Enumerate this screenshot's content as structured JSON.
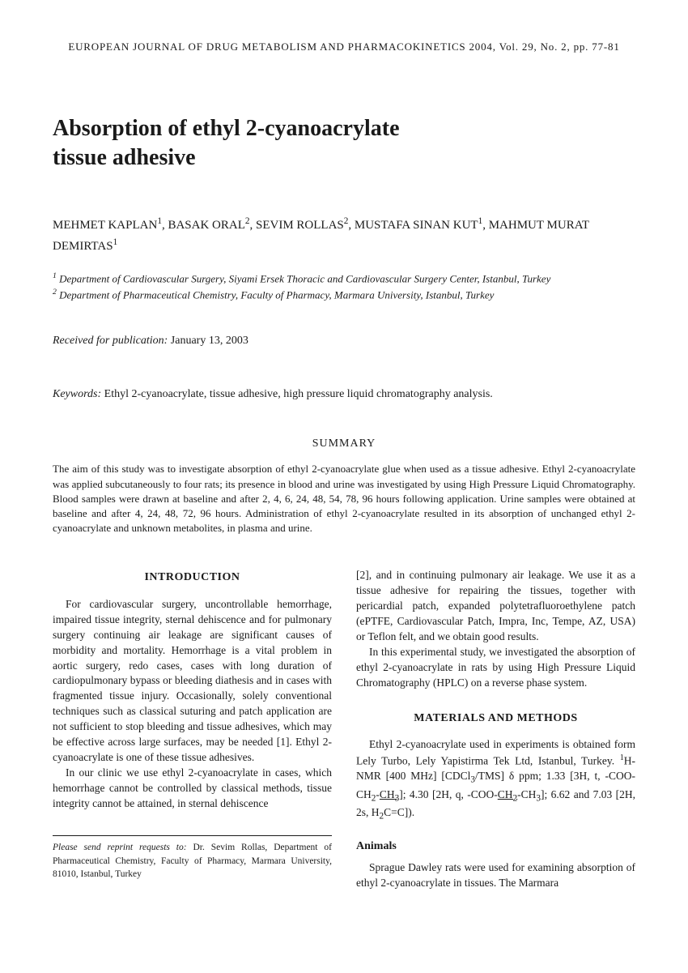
{
  "journal_header": "EUROPEAN JOURNAL OF DRUG METABOLISM AND PHARMACOKINETICS 2004, Vol. 29, No. 2, pp. 77-81",
  "title_line1": "Absorption of ethyl 2-cyanoacrylate",
  "title_line2": "tissue adhesive",
  "authors_html": "MEHMET KAPLAN<sup>1</sup>, BASAK ORAL<sup>2</sup>, SEVIM ROLLAS<sup>2</sup>, MUSTAFA SINAN KUT<sup>1</sup>, MAHMUT MURAT DEMIRTAS<sup>1</sup>",
  "affiliation1_html": "<sup>1</sup> Department of Cardiovascular Surgery, Siyami Ersek Thoracic and Cardiovascular Surgery Center, Istanbul, Turkey",
  "affiliation2_html": "<sup>2</sup> Department of Pharmaceutical Chemistry, Faculty of Pharmacy, Marmara University, Istanbul, Turkey",
  "received_label": "Received for publication:",
  "received_date": " January 13, 2003",
  "keywords_label": "Keywords:",
  "keywords_text": " Ethyl 2-cyanoacrylate, tissue adhesive, high pressure liquid chromatography analysis.",
  "summary_heading": "SUMMARY",
  "summary_text": "The aim of this study was to investigate absorption of ethyl 2-cyanoacrylate glue when used as a tissue adhesive. Ethyl 2-cyanoacrylate was applied subcutaneously to four rats; its presence in blood and urine was investigated by using High Pressure Liquid Chromatography. Blood samples were drawn at baseline and after 2, 4, 6, 24, 48, 54, 78, 96 hours following application. Urine samples were obtained at baseline and after 4, 24, 48, 72, 96 hours. Administration of ethyl 2-cyanoacrylate resulted in its absorption of unchanged ethyl 2-cyanoacrylate and unknown metabolites, in plasma and urine.",
  "introduction_heading": "INTRODUCTION",
  "intro_p1": "For cardiovascular surgery, uncontrollable hemorrhage, impaired tissue integrity, sternal dehiscence and for pulmonary surgery continuing air leakage are significant causes of morbidity and mortality. Hemorrhage is a vital problem in aortic surgery, redo cases, cases with long duration of cardiopulmonary bypass or bleeding diathesis and in cases with fragmented tissue injury. Occasionally, solely conventional techniques such as classical suturing and patch application are not sufficient to stop bleeding and tissue adhesives, which may be effective across large surfaces, may be needed [1]. Ethyl 2-cyanoacrylate is one of these tissue adhesives.",
  "intro_p2": "In our clinic we use ethyl 2-cyanoacrylate in cases, which hemorrhage cannot be controlled by classical methods, tissue integrity cannot be attained, in sternal dehiscence",
  "col2_p1": "[2], and in continuing pulmonary air leakage. We use it as a tissue adhesive for repairing the tissues, together with pericardial patch, expanded polytetrafluoroethylene patch (ePTFE, Cardiovascular Patch, Impra, Inc, Tempe, AZ, USA) or Teflon felt, and we obtain good results.",
  "col2_p2": "In this experimental study, we investigated the absorption of ethyl 2-cyanoacrylate in rats by using High Pressure Liquid Chromatography (HPLC) on a reverse phase system.",
  "materials_heading": "MATERIALS AND METHODS",
  "materials_p1_html": "Ethyl 2-cyanoacrylate used in experiments is obtained form Lely Turbo, Lely Yapistirma Tek Ltd, Istanbul, Turkey. <sup>1</sup>H-NMR [400 MHz] [CDCl<sub>3</sub>/TMS] δ ppm; 1.33 [3H, t, -COO-CH<sub>2</sub>-<u>CH<sub>3</sub></u>]; 4.30 [2H, q, -COO-<u>CH<sub>2</sub></u>-CH<sub>3</sub>]; 6.62 and 7.03 [2H, 2s, H<sub>2</sub>C=C]).",
  "animals_heading": "Animals",
  "animals_p1": "Sprague Dawley rats were used for examining absorption of ethyl 2-cyanoacrylate in tissues. The Marmara",
  "reprint_label": "Please send reprint requests to:",
  "reprint_text": " Dr. Sevim Rollas, Department of Pharmaceutical Chemistry, Faculty of Pharmacy, Marmara University, 81010, Istanbul, Turkey"
}
